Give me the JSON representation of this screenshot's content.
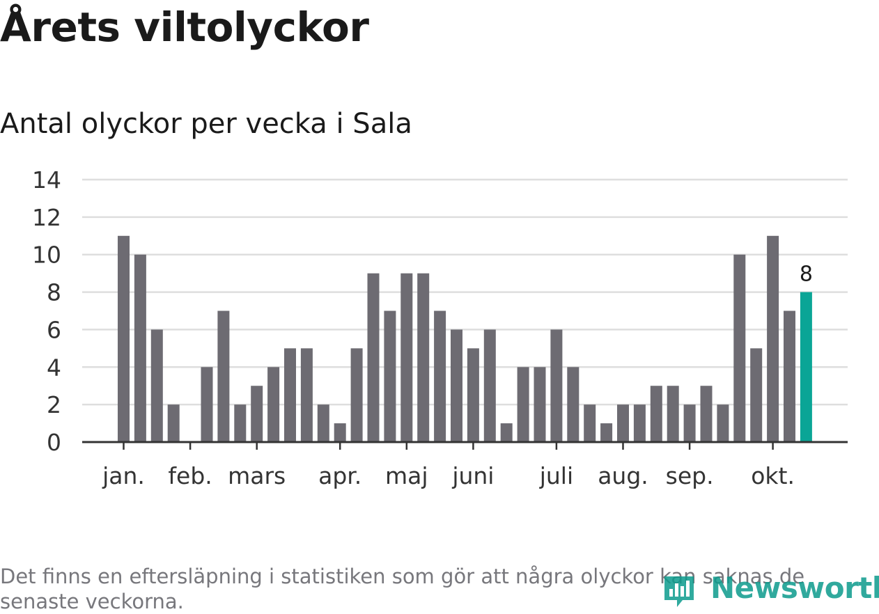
{
  "title": "Årets viltolyckor",
  "subtitle": "Antal olyckor per vecka i Sala",
  "footnote": "Det finns en eftersläpning i statistiken som gör att några olyckor kan saknas de senaste veckorna.",
  "logo": {
    "text": "Newsworthy",
    "icon": "newsworthy-logo-icon"
  },
  "colors": {
    "bar": "#6d6b72",
    "highlight": "#0aa596",
    "grid": "#dedede",
    "axis": "#333333"
  },
  "chart_data": {
    "type": "bar",
    "title": "Årets viltolyckor",
    "subtitle": "Antal olyckor per vecka i Sala",
    "xlabel": "",
    "ylabel": "",
    "ylim": [
      0,
      14
    ],
    "yticks": [
      0,
      2,
      4,
      6,
      8,
      10,
      12,
      14
    ],
    "grid": true,
    "values": [
      11,
      10,
      6,
      2,
      0,
      4,
      7,
      2,
      3,
      4,
      5,
      5,
      2,
      1,
      5,
      9,
      7,
      9,
      9,
      7,
      6,
      5,
      6,
      1,
      4,
      4,
      6,
      4,
      2,
      1,
      2,
      2,
      3,
      3,
      2,
      3,
      2,
      10,
      5,
      11,
      7,
      8
    ],
    "highlight_index": 41,
    "highlight_label": "8",
    "month_labels": [
      {
        "label": "jan.",
        "bar_index": 0
      },
      {
        "label": "feb.",
        "bar_index": 4
      },
      {
        "label": "mars",
        "bar_index": 8
      },
      {
        "label": "apr.",
        "bar_index": 13
      },
      {
        "label": "maj",
        "bar_index": 17
      },
      {
        "label": "juni",
        "bar_index": 21
      },
      {
        "label": "juli",
        "bar_index": 26
      },
      {
        "label": "aug.",
        "bar_index": 30
      },
      {
        "label": "sep.",
        "bar_index": 34
      },
      {
        "label": "okt.",
        "bar_index": 39
      }
    ]
  }
}
